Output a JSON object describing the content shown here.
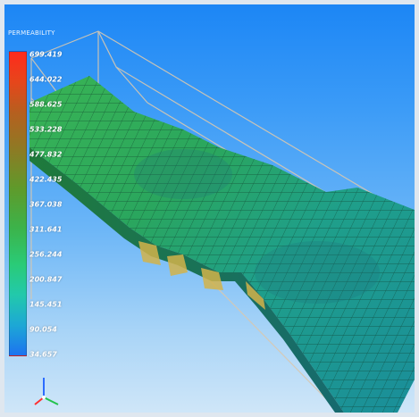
{
  "legend": {
    "title": "PERMEABILITY",
    "ticks": [
      "699.419",
      "644.022",
      "588.625",
      "533.228",
      "477.832",
      "422.435",
      "367.038",
      "311.641",
      "256.244",
      "200.847",
      "145.451",
      "90.054",
      "34.657"
    ]
  },
  "colors": {
    "max": "#ff2a1d",
    "min": "#1d73f0",
    "mesh_green": "#2aa44b",
    "mesh_teal": "#1f9f9a",
    "grid_line": "#0f3b2a",
    "bbox_line": "#d8c8b0"
  },
  "axes": {
    "icon": "xyz-axes-triad-icon"
  }
}
